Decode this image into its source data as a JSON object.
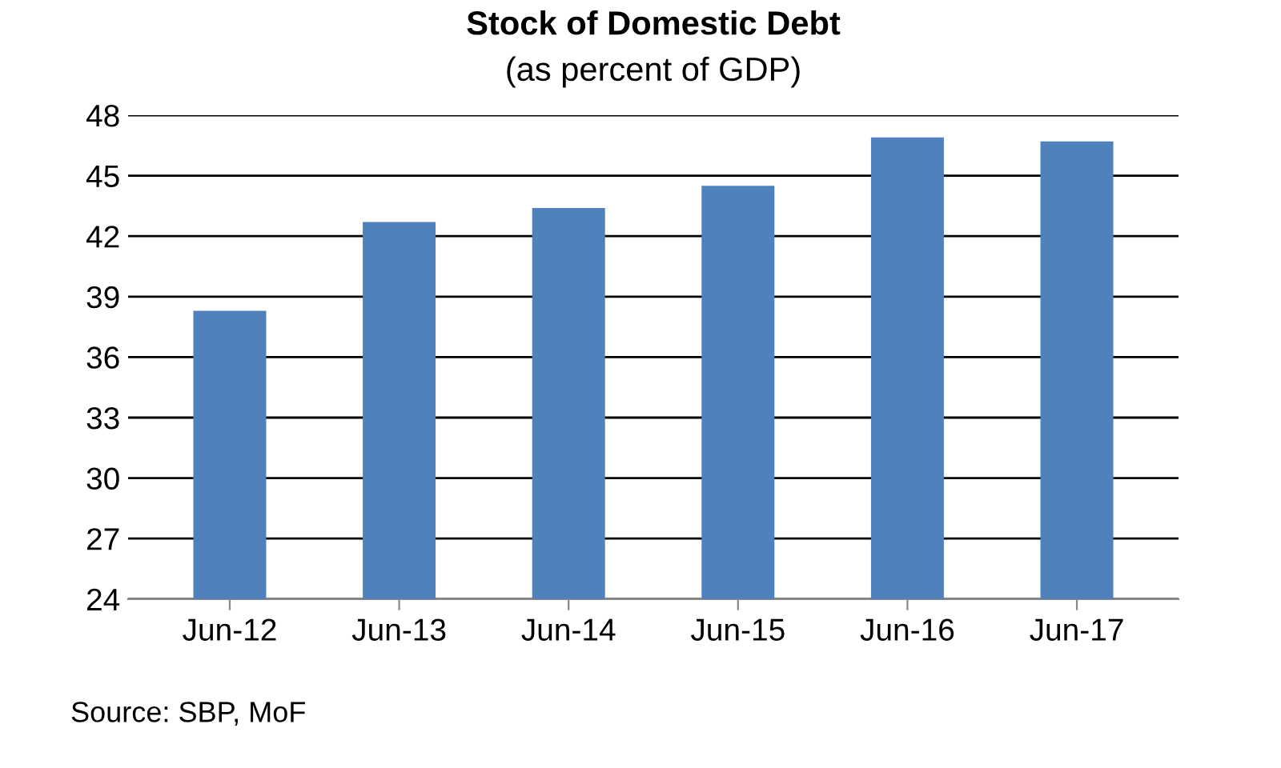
{
  "chart_data": {
    "type": "bar",
    "title": "Stock of Domestic Debt",
    "subtitle": "(as percent of GDP)",
    "categories": [
      "Jun-12",
      "Jun-13",
      "Jun-14",
      "Jun-15",
      "Jun-16",
      "Jun-17"
    ],
    "values": [
      38.3,
      42.7,
      43.4,
      44.5,
      46.9,
      46.7
    ],
    "color": "#4f81bd",
    "ylim": [
      24,
      48
    ],
    "yticks": [
      24,
      27,
      30,
      33,
      36,
      39,
      42,
      45,
      48
    ],
    "grid": "y",
    "annotations": [
      "Source: SBP, MoF"
    ]
  }
}
